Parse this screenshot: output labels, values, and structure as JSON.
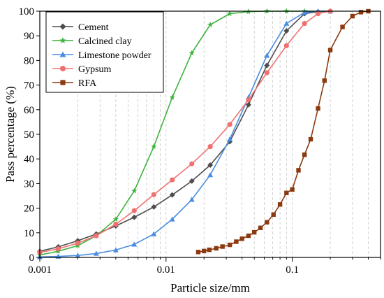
{
  "chart_data": {
    "type": "line",
    "xlabel": "Particle size/mm",
    "ylabel": "Pass percentage (%)",
    "x_scale": "log",
    "xlim": [
      0.001,
      0.5
    ],
    "ylim": [
      0,
      100
    ],
    "x_ticks": [
      {
        "value": 0.001,
        "label": "0.001"
      },
      {
        "value": 0.01,
        "label": "0.01"
      },
      {
        "value": 0.1,
        "label": "0.1"
      }
    ],
    "y_ticks": [
      0,
      10,
      20,
      30,
      40,
      50,
      60,
      70,
      80,
      90,
      100
    ],
    "grid": "vertical dashed gridlines at each minor x tick",
    "legend_position": "top-left",
    "series": [
      {
        "name": "Cement",
        "color": "#4d4d4d",
        "marker": "diamond",
        "points": [
          [
            0.001,
            2.5
          ],
          [
            0.0014,
            4.3
          ],
          [
            0.002,
            6.8
          ],
          [
            0.0028,
            9.5
          ],
          [
            0.004,
            12.8
          ],
          [
            0.0056,
            16.3
          ],
          [
            0.008,
            20.5
          ],
          [
            0.0112,
            25.4
          ],
          [
            0.016,
            31.0
          ],
          [
            0.0224,
            37.5
          ],
          [
            0.032,
            47.0
          ],
          [
            0.045,
            62.0
          ],
          [
            0.063,
            78.0
          ],
          [
            0.09,
            92.0
          ],
          [
            0.125,
            99.0
          ],
          [
            0.16,
            99.8
          ],
          [
            0.2,
            100
          ]
        ]
      },
      {
        "name": "Calcined clay",
        "color": "#3db33d",
        "marker": "star",
        "points": [
          [
            0.001,
            1.0
          ],
          [
            0.0014,
            2.5
          ],
          [
            0.002,
            4.8
          ],
          [
            0.0028,
            8.8
          ],
          [
            0.004,
            15.5
          ],
          [
            0.0056,
            27.0
          ],
          [
            0.008,
            45.0
          ],
          [
            0.0112,
            65.0
          ],
          [
            0.016,
            83.0
          ],
          [
            0.0224,
            94.5
          ],
          [
            0.032,
            99.0
          ],
          [
            0.045,
            99.8
          ],
          [
            0.063,
            100
          ],
          [
            0.09,
            100
          ],
          [
            0.125,
            100
          ],
          [
            0.2,
            100
          ]
        ]
      },
      {
        "name": "Limestone powder",
        "color": "#4a8de0",
        "marker": "triangle",
        "points": [
          [
            0.001,
            0.2
          ],
          [
            0.0014,
            0.4
          ],
          [
            0.002,
            0.8
          ],
          [
            0.0028,
            1.6
          ],
          [
            0.004,
            3.0
          ],
          [
            0.0056,
            5.3
          ],
          [
            0.008,
            9.5
          ],
          [
            0.0112,
            15.5
          ],
          [
            0.016,
            23.5
          ],
          [
            0.0224,
            33.5
          ],
          [
            0.032,
            48.0
          ],
          [
            0.045,
            65.0
          ],
          [
            0.063,
            82.0
          ],
          [
            0.09,
            95.0
          ],
          [
            0.125,
            99.5
          ],
          [
            0.16,
            100
          ],
          [
            0.2,
            100
          ]
        ]
      },
      {
        "name": "Gypsum",
        "color": "#f07070",
        "marker": "circle",
        "points": [
          [
            0.001,
            2.0
          ],
          [
            0.0014,
            3.5
          ],
          [
            0.002,
            5.8
          ],
          [
            0.0028,
            8.8
          ],
          [
            0.004,
            13.5
          ],
          [
            0.0056,
            19.0
          ],
          [
            0.008,
            25.5
          ],
          [
            0.0112,
            31.5
          ],
          [
            0.016,
            38.0
          ],
          [
            0.0224,
            45.0
          ],
          [
            0.032,
            54.0
          ],
          [
            0.045,
            64.0
          ],
          [
            0.063,
            75.0
          ],
          [
            0.09,
            86.0
          ],
          [
            0.125,
            95.0
          ],
          [
            0.16,
            99.0
          ],
          [
            0.2,
            100
          ]
        ]
      },
      {
        "name": "RFA",
        "color": "#8b3a0f",
        "marker": "square",
        "points": [
          [
            0.018,
            2.2
          ],
          [
            0.02,
            2.6
          ],
          [
            0.022,
            3.1
          ],
          [
            0.025,
            3.7
          ],
          [
            0.028,
            4.4
          ],
          [
            0.032,
            5.1
          ],
          [
            0.036,
            6.4
          ],
          [
            0.04,
            7.6
          ],
          [
            0.045,
            8.8
          ],
          [
            0.05,
            10.2
          ],
          [
            0.056,
            12.0
          ],
          [
            0.063,
            14.3
          ],
          [
            0.071,
            17.4
          ],
          [
            0.08,
            21.5
          ],
          [
            0.09,
            26.2
          ],
          [
            0.1,
            27.6
          ],
          [
            0.112,
            35.4
          ],
          [
            0.125,
            41.7
          ],
          [
            0.14,
            48.0
          ],
          [
            0.16,
            60.5
          ],
          [
            0.18,
            71.8
          ],
          [
            0.2,
            84.2
          ],
          [
            0.25,
            93.6
          ],
          [
            0.3,
            98.0
          ],
          [
            0.35,
            99.6
          ],
          [
            0.4,
            100
          ]
        ]
      }
    ]
  }
}
